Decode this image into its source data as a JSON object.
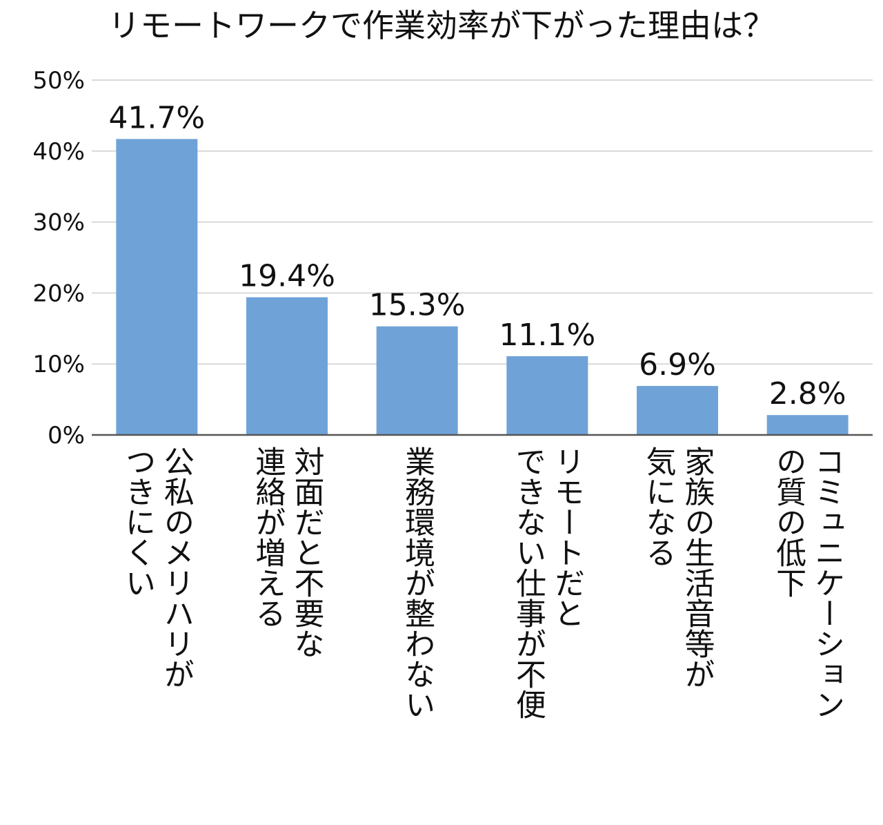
{
  "chart_data": {
    "type": "bar",
    "title": "リモートワークで作業効率が下がった理由は？",
    "categories": [
      [
        "公私のメリハリが",
        "つきにくい"
      ],
      [
        "対面だと不要な",
        "連絡が増える"
      ],
      [
        "業務環境が整わない"
      ],
      [
        "リモートだと",
        "できない仕事が不便"
      ],
      [
        "家族の生活音等が",
        "気になる"
      ],
      [
        "コミュニケーション",
        "の質の低下"
      ]
    ],
    "values": [
      41.7,
      19.4,
      15.3,
      11.1,
      6.9,
      2.8
    ],
    "data_labels": [
      "41.7%",
      "19.4%",
      "15.3%",
      "11.1%",
      "6.9%",
      "2.8%"
    ],
    "yticks": [
      "0%",
      "10%",
      "20%",
      "30%",
      "40%",
      "50%"
    ],
    "ylim": [
      0,
      50
    ],
    "grid": true,
    "colors": {
      "bar": "#6FA3D8",
      "grid": "#D9D9D9",
      "axis": "#555555"
    }
  }
}
